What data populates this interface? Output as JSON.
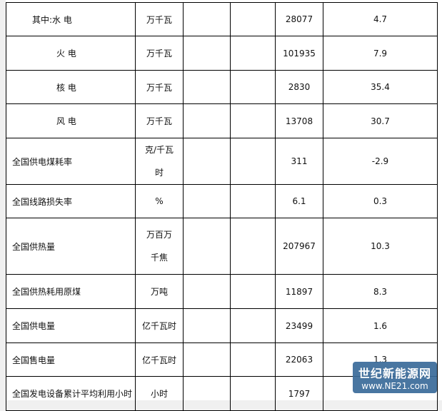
{
  "rows": [
    {
      "name": "其中:水 电",
      "unit": "万千瓦",
      "value": "28077",
      "change": "4.7",
      "indent": 1
    },
    {
      "name": "火 电",
      "unit": "万千瓦",
      "value": "101935",
      "change": "7.9",
      "indent": 2
    },
    {
      "name": "核 电",
      "unit": "万千瓦",
      "value": "2830",
      "change": "35.4",
      "indent": 2
    },
    {
      "name": "风 电",
      "unit": "万千瓦",
      "value": "13708",
      "change": "30.7",
      "indent": 2
    },
    {
      "name": "全国供电煤耗率",
      "unit": "克/千瓦时",
      "value": "311",
      "change": "-2.9",
      "indent": 0
    },
    {
      "name": "全国线路损失率",
      "unit": "%",
      "value": "6.1",
      "change": "0.3",
      "indent": 0
    },
    {
      "name": "全国供热量",
      "unit": "万百万千焦",
      "value": "207967",
      "change": "10.3",
      "indent": 0
    },
    {
      "name": "全国供热耗用原煤",
      "unit": "万吨",
      "value": "11897",
      "change": "8.3",
      "indent": 0
    },
    {
      "name": "全国供电量",
      "unit": "亿千瓦时",
      "value": "23499",
      "change": "1.6",
      "indent": 0
    },
    {
      "name": "全国售电量",
      "unit": "亿千瓦时",
      "value": "22063",
      "change": "1.3",
      "indent": 0
    },
    {
      "name": "全国发电设备累计平均利用小时",
      "unit": "小时",
      "value": "1797",
      "change": "",
      "indent": 0
    }
  ],
  "watermark": {
    "title": "世纪新能源网",
    "url": "www.NE21.com"
  }
}
